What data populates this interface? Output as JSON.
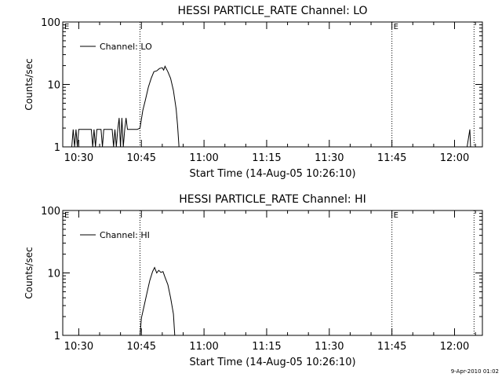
{
  "footer_timestamp": "9-Apr-2010 01:02",
  "chart_data": [
    {
      "type": "line",
      "title": "HESSI PARTICLE_RATE Channel: LO",
      "xlabel": "Start Time (14-Aug-05 10:26:10)",
      "ylabel": "Counts/sec",
      "y_scale": "log",
      "ylim": [
        1,
        100
      ],
      "xlim": [
        "10:26:10",
        "12:06:40"
      ],
      "x_ticks": [
        "10:30",
        "10:45",
        "11:00",
        "11:15",
        "11:30",
        "11:45",
        "12:00"
      ],
      "y_ticks": [
        "1",
        "10",
        "100"
      ],
      "legend": {
        "position": "top-left",
        "label": "Channel: LO"
      },
      "markers": [
        {
          "label": "E",
          "x": "10:26:10"
        },
        {
          "label": "",
          "x": "10:44:40"
        },
        {
          "label": "E",
          "x": "11:45:00"
        },
        {
          "label": "",
          "x": "12:04:40"
        }
      ],
      "series": [
        {
          "name": "Channel: LO",
          "segments": [
            [
              [
                "10:28:20",
                1
              ],
              [
                "10:28:40",
                1.9
              ],
              [
                "10:29:00",
                1
              ],
              [
                "10:29:20",
                1.9
              ],
              [
                "10:29:40",
                1
              ],
              [
                "10:30:00",
                1.9
              ],
              [
                "10:31:00",
                1.9
              ],
              [
                "10:31:40",
                1.9
              ],
              [
                "10:32:20",
                1.9
              ],
              [
                "10:33:00",
                1.9
              ],
              [
                "10:33:20",
                1
              ],
              [
                "10:33:40",
                1.9
              ],
              [
                "10:34:00",
                1
              ],
              [
                "10:34:20",
                1.9
              ],
              [
                "10:35:20",
                1.9
              ],
              [
                "10:35:40",
                1
              ],
              [
                "10:36:00",
                1.9
              ],
              [
                "10:37:00",
                1.9
              ],
              [
                "10:38:00",
                1.9
              ],
              [
                "10:38:20",
                1
              ],
              [
                "10:38:40",
                1.9
              ],
              [
                "10:39:00",
                1
              ],
              [
                "10:39:20",
                1.9
              ],
              [
                "10:39:40",
                2.9
              ],
              [
                "10:40:00",
                1
              ],
              [
                "10:40:20",
                2.9
              ],
              [
                "10:40:40",
                1
              ],
              [
                "10:41:00",
                1.9
              ],
              [
                "10:41:20",
                2.9
              ],
              [
                "10:41:40",
                1.9
              ],
              [
                "10:42:00",
                1.9
              ],
              [
                "10:43:00",
                1.9
              ],
              [
                "10:44:00",
                1.9
              ],
              [
                "10:44:40",
                2.0
              ],
              [
                "10:45:20",
                3.8
              ],
              [
                "10:46:00",
                5.8
              ],
              [
                "10:46:40",
                9.0
              ],
              [
                "10:47:20",
                12.5
              ],
              [
                "10:48:00",
                16.0
              ],
              [
                "10:48:40",
                16.5
              ],
              [
                "10:49:20",
                18.0
              ],
              [
                "10:50:00",
                18.5
              ],
              [
                "10:50:20",
                17.0
              ],
              [
                "10:50:40",
                19.5
              ],
              [
                "10:51:20",
                16.0
              ],
              [
                "10:52:00",
                12.5
              ],
              [
                "10:52:40",
                8.0
              ],
              [
                "10:53:20",
                4.0
              ],
              [
                "10:53:40",
                2.2
              ],
              [
                "10:54:00",
                1
              ]
            ],
            [
              [
                "12:03:00",
                1
              ],
              [
                "12:03:40",
                1.9
              ],
              [
                "12:03:50",
                1
              ]
            ]
          ]
        }
      ]
    },
    {
      "type": "line",
      "title": "HESSI PARTICLE_RATE Channel: HI",
      "xlabel": "Start Time (14-Aug-05 10:26:10)",
      "ylabel": "Counts/sec",
      "y_scale": "log",
      "ylim": [
        1,
        100
      ],
      "xlim": [
        "10:26:10",
        "12:06:40"
      ],
      "x_ticks": [
        "10:30",
        "10:45",
        "11:00",
        "11:15",
        "11:30",
        "11:45",
        "12:00"
      ],
      "y_ticks": [
        "1",
        "10",
        "100"
      ],
      "legend": {
        "position": "top-left",
        "label": "Channel: HI"
      },
      "markers": [
        {
          "label": "E",
          "x": "10:26:10"
        },
        {
          "label": "",
          "x": "10:44:40"
        },
        {
          "label": "E",
          "x": "11:45:00"
        },
        {
          "label": "",
          "x": "12:04:40"
        }
      ],
      "series": [
        {
          "name": "Channel: HI",
          "segments": [
            [
              [
                "10:44:40",
                1
              ],
              [
                "10:45:00",
                1.9
              ],
              [
                "10:45:40",
                3.0
              ],
              [
                "10:46:20",
                4.8
              ],
              [
                "10:47:00",
                7.5
              ],
              [
                "10:47:40",
                10.5
              ],
              [
                "10:48:10",
                12.2
              ],
              [
                "10:48:40",
                10.0
              ],
              [
                "10:49:10",
                11.0
              ],
              [
                "10:49:40",
                10.2
              ],
              [
                "10:50:10",
                10.5
              ],
              [
                "10:50:40",
                8.5
              ],
              [
                "10:51:20",
                6.5
              ],
              [
                "10:52:00",
                4.0
              ],
              [
                "10:52:40",
                2.2
              ],
              [
                "10:53:00",
                1
              ]
            ]
          ]
        }
      ]
    }
  ]
}
